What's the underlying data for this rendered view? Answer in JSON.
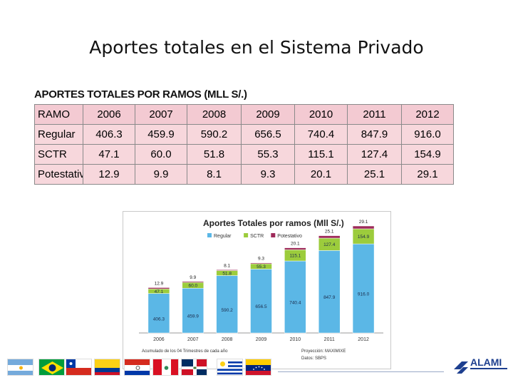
{
  "slide": {
    "title": "Aportes totales en el Sistema Privado"
  },
  "table": {
    "heading": "APORTES TOTALES POR RAMOS (MLL S/.)",
    "header": [
      "RAMO",
      "2006",
      "2007",
      "2008",
      "2009",
      "2010",
      "2011",
      "2012"
    ],
    "rows": [
      [
        "Regular",
        "406.3",
        "459.9",
        "590.2",
        "656.5",
        "740.4",
        "847.9",
        "916.0"
      ],
      [
        "SCTR",
        "47.1",
        "60.0",
        "51.8",
        "55.3",
        "115.1",
        "127.4",
        "154.9"
      ],
      [
        "Potestativo",
        "12.9",
        "9.9",
        "8.1",
        "9.3",
        "20.1",
        "25.1",
        "29.1"
      ]
    ]
  },
  "chart_data": {
    "type": "bar",
    "stacked": true,
    "title": "Aportes Totales por ramos (Mll S/.)",
    "categories": [
      "2006",
      "2007",
      "2008",
      "2009",
      "2010",
      "2011",
      "2012"
    ],
    "series": [
      {
        "name": "Regular",
        "color": "#5bb7e6",
        "values": [
          406.3,
          459.9,
          590.2,
          656.5,
          740.4,
          847.9,
          916.0
        ]
      },
      {
        "name": "SCTR",
        "color": "#9ccc3c",
        "values": [
          47.1,
          60.0,
          51.8,
          55.3,
          115.1,
          127.4,
          154.9
        ]
      },
      {
        "name": "Potestativo",
        "color": "#9e2a5a",
        "values": [
          12.9,
          9.9,
          8.1,
          9.3,
          20.1,
          25.1,
          29.1
        ]
      }
    ],
    "legend": "top",
    "grid": false,
    "notes": [
      "Acumulado de los 04 Trimestres de cada año",
      "Proyección: MAXIMIXE",
      "Datos: SBPS"
    ]
  },
  "footer": {
    "flags": [
      {
        "icon": "argentina-flag"
      },
      {
        "icon": "brazil-flag"
      },
      {
        "icon": "chile-flag"
      },
      {
        "icon": "colombia-flag"
      },
      {
        "icon": "paraguay-flag"
      },
      {
        "icon": "peru-flag"
      },
      {
        "icon": "dominican-republic-flag"
      },
      {
        "icon": "uruguay-flag"
      },
      {
        "icon": "venezuela-flag"
      }
    ],
    "logo_text": "ALAMI"
  }
}
